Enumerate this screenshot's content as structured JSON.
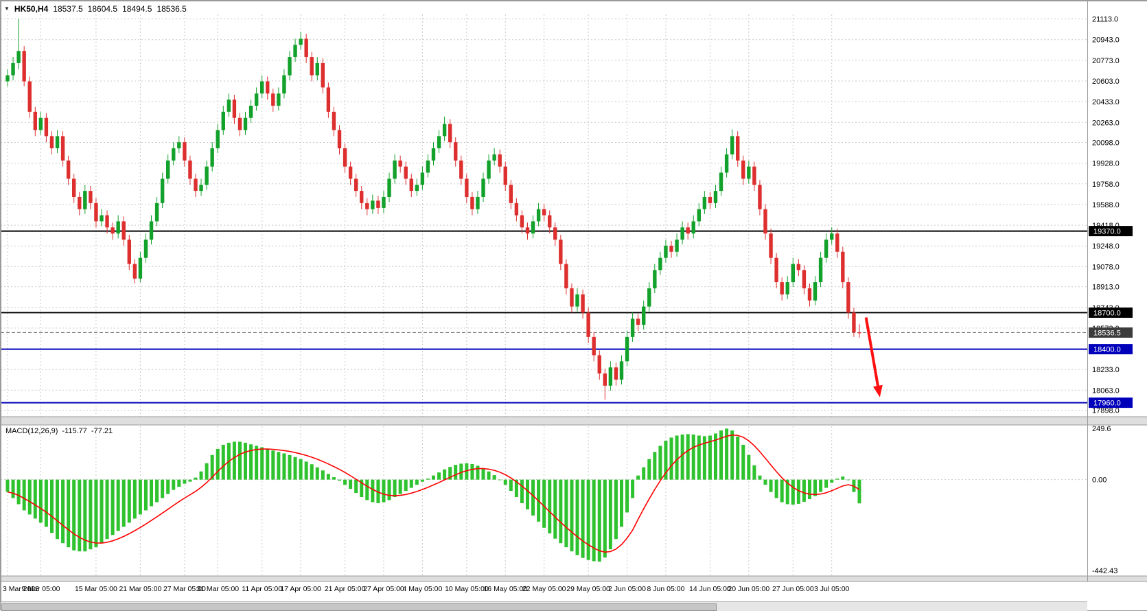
{
  "header": {
    "symbol_period": "HK50,H4",
    "open": "18537.5",
    "high": "18604.5",
    "low": "18494.5",
    "close": "18536.5"
  },
  "indicator_label": {
    "name": "MACD(12,26,9)",
    "value_macd": "-115.77",
    "value_signal": "-77.21"
  },
  "price_axis": {
    "ticks": [
      "21113.0",
      "20943.0",
      "20773.0",
      "20603.0",
      "20433.0",
      "20263.0",
      "20098.0",
      "19928.0",
      "19758.0",
      "19588.0",
      "19418.0",
      "19248.0",
      "19078.0",
      "18913.0",
      "18743.0",
      "18573.0",
      "18233.0",
      "18063.0",
      "17898.0"
    ],
    "badges": [
      {
        "text": "19370.0",
        "price": 19370.0,
        "bg": "#000000"
      },
      {
        "text": "18700.0",
        "price": 18700.0,
        "bg": "#000000"
      },
      {
        "text": "18536.5",
        "price": 18536.5,
        "bg": "#3c3c3c"
      },
      {
        "text": "18400.0",
        "price": 18400.0,
        "bg": "#0000BB"
      },
      {
        "text": "17960.0",
        "price": 17960.0,
        "bg": "#0000BB"
      }
    ]
  },
  "macd_axis": {
    "ticks": [
      {
        "text": "249.6",
        "value": 249.6
      },
      {
        "text": "0.00",
        "value": 0.0
      },
      {
        "text": "-442.43",
        "value": -442.43
      }
    ]
  },
  "time_axis": {
    "labels": [
      "3 Mar 2023",
      "9 Mar 05:00",
      "15 Mar 05:00",
      "21 Mar 05:00",
      "27 Mar 05:00",
      "31 Mar 05:00",
      "11 Apr 05:00",
      "17 Apr 05:00",
      "21 Apr 05:00",
      "27 Apr 05:00",
      "4 May 05:00",
      "10 May 05:00",
      "16 May 05:00",
      "22 May 05:00",
      "29 May 05:00",
      "2 Jun 05:00",
      "8 Jun 05:00",
      "14 Jun 05:00",
      "20 Jun 05:00",
      "27 Jun 05:00",
      "3 Jul 05:00"
    ],
    "bar_indices": [
      0,
      6,
      16,
      24,
      32,
      38,
      46,
      53,
      61,
      68,
      75,
      83,
      90,
      97,
      105,
      112,
      119,
      127,
      134,
      142,
      149
    ]
  },
  "price_lines": [
    {
      "price": 19370.0,
      "color": "#000000",
      "width": 2
    },
    {
      "price": 18700.0,
      "color": "#000000",
      "width": 2
    },
    {
      "price": 18400.0,
      "color": "#0000BB",
      "width": 2
    },
    {
      "price": 17960.0,
      "color": "#0000BB",
      "width": 2
    }
  ],
  "current_price_line": {
    "price": 18536.5,
    "color": "#666666"
  },
  "arrow_annotation": {
    "from_bar": 155.2,
    "from_price": 18660,
    "to_bar": 157.7,
    "to_price": 18005,
    "color": "#FF1010",
    "width": 4
  },
  "colors": {
    "background": "#FFFFFF",
    "grid": "#C9C9C9",
    "bull": "#12A12B",
    "bear": "#DE2F2F",
    "histogram": "#2EC22E",
    "signal": "#FF0000",
    "axis_text": "#000000",
    "separator": "#DEDEDE",
    "separator_edge": "#9A9A9A",
    "border": "#9A9A9A"
  },
  "chart_data": {
    "type": "candlestick",
    "symbol": "HK50",
    "timeframe": "H4",
    "price_range": [
      17845,
      21150
    ],
    "indicator_range": [
      -470,
      260
    ],
    "candles": [
      [
        20600,
        20700,
        20560,
        20650
      ],
      [
        20650,
        20800,
        20610,
        20750
      ],
      [
        20750,
        21113,
        20700,
        20850
      ],
      [
        20850,
        20890,
        20560,
        20600
      ],
      [
        20600,
        20640,
        20300,
        20350
      ],
      [
        20350,
        20390,
        20150,
        20200
      ],
      [
        20200,
        20350,
        20160,
        20300
      ],
      [
        20300,
        20340,
        20100,
        20150
      ],
      [
        20150,
        20190,
        20000,
        20050
      ],
      [
        20050,
        20200,
        20010,
        20150
      ],
      [
        20150,
        20190,
        19900,
        19950
      ],
      [
        19950,
        19990,
        19750,
        19800
      ],
      [
        19800,
        19840,
        19600,
        19650
      ],
      [
        19650,
        19690,
        19500,
        19550
      ],
      [
        19550,
        19750,
        19510,
        19700
      ],
      [
        19700,
        19740,
        19550,
        19600
      ],
      [
        19600,
        19640,
        19400,
        19450
      ],
      [
        19450,
        19550,
        19410,
        19500
      ],
      [
        19500,
        19540,
        19350,
        19400
      ],
      [
        19400,
        19440,
        19300,
        19350
      ],
      [
        19350,
        19500,
        19310,
        19450
      ],
      [
        19450,
        19490,
        19250,
        19300
      ],
      [
        19300,
        19340,
        19050,
        19100
      ],
      [
        19100,
        19140,
        18940,
        18980
      ],
      [
        18980,
        19200,
        18950,
        19150
      ],
      [
        19150,
        19350,
        19110,
        19300
      ],
      [
        19300,
        19500,
        19260,
        19450
      ],
      [
        19450,
        19650,
        19410,
        19600
      ],
      [
        19600,
        19850,
        19560,
        19800
      ],
      [
        19800,
        20000,
        19760,
        19950
      ],
      [
        19950,
        20100,
        19910,
        20050
      ],
      [
        20050,
        20150,
        20010,
        20100
      ],
      [
        20100,
        20140,
        19900,
        19950
      ],
      [
        19950,
        19990,
        19750,
        19800
      ],
      [
        19800,
        19840,
        19650,
        19700
      ],
      [
        19700,
        19800,
        19660,
        19750
      ],
      [
        19750,
        19950,
        19710,
        19900
      ],
      [
        19900,
        20100,
        19860,
        20050
      ],
      [
        20050,
        20250,
        20010,
        20200
      ],
      [
        20200,
        20400,
        20160,
        20350
      ],
      [
        20350,
        20500,
        20310,
        20450
      ],
      [
        20450,
        20490,
        20250,
        20300
      ],
      [
        20300,
        20340,
        20150,
        20200
      ],
      [
        20200,
        20350,
        20160,
        20300
      ],
      [
        20300,
        20450,
        20260,
        20400
      ],
      [
        20400,
        20550,
        20360,
        20500
      ],
      [
        20500,
        20650,
        20460,
        20600
      ],
      [
        20600,
        20640,
        20450,
        20500
      ],
      [
        20500,
        20540,
        20350,
        20400
      ],
      [
        20400,
        20550,
        20360,
        20500
      ],
      [
        20500,
        20700,
        20460,
        20650
      ],
      [
        20650,
        20850,
        20610,
        20800
      ],
      [
        20800,
        20950,
        20760,
        20900
      ],
      [
        20900,
        21005,
        20860,
        20950
      ],
      [
        20950,
        20990,
        20750,
        20800
      ],
      [
        20800,
        20840,
        20600,
        20650
      ],
      [
        20650,
        20800,
        20610,
        20750
      ],
      [
        20750,
        20790,
        20500,
        20550
      ],
      [
        20550,
        20590,
        20300,
        20350
      ],
      [
        20350,
        20390,
        20150,
        20200
      ],
      [
        20200,
        20240,
        20000,
        20050
      ],
      [
        20050,
        20090,
        19850,
        19900
      ],
      [
        19900,
        19940,
        19750,
        19800
      ],
      [
        19800,
        19840,
        19650,
        19700
      ],
      [
        19700,
        19740,
        19550,
        19600
      ],
      [
        19600,
        19640,
        19500,
        19550
      ],
      [
        19550,
        19670,
        19510,
        19620
      ],
      [
        19620,
        19660,
        19510,
        19560
      ],
      [
        19560,
        19700,
        19520,
        19650
      ],
      [
        19650,
        19850,
        19610,
        19800
      ],
      [
        19800,
        20000,
        19760,
        19950
      ],
      [
        19950,
        19990,
        19850,
        19900
      ],
      [
        19900,
        19940,
        19750,
        19800
      ],
      [
        19800,
        19840,
        19650,
        19700
      ],
      [
        19700,
        19800,
        19660,
        19750
      ],
      [
        19750,
        19900,
        19710,
        19850
      ],
      [
        19850,
        20000,
        19810,
        19950
      ],
      [
        19950,
        20100,
        19910,
        20050
      ],
      [
        20050,
        20200,
        20010,
        20150
      ],
      [
        20150,
        20310,
        20110,
        20250
      ],
      [
        20250,
        20290,
        20050,
        20100
      ],
      [
        20100,
        20140,
        19900,
        19950
      ],
      [
        19950,
        19990,
        19750,
        19800
      ],
      [
        19800,
        19840,
        19600,
        19650
      ],
      [
        19650,
        19690,
        19500,
        19550
      ],
      [
        19550,
        19700,
        19510,
        19650
      ],
      [
        19650,
        19850,
        19610,
        19800
      ],
      [
        19800,
        20000,
        19760,
        19950
      ],
      [
        19950,
        20050,
        19910,
        20000
      ],
      [
        20000,
        20040,
        19850,
        19900
      ],
      [
        19900,
        19940,
        19700,
        19750
      ],
      [
        19750,
        19790,
        19550,
        19600
      ],
      [
        19600,
        19640,
        19450,
        19500
      ],
      [
        19500,
        19540,
        19350,
        19400
      ],
      [
        19400,
        19440,
        19300,
        19350
      ],
      [
        19350,
        19500,
        19310,
        19450
      ],
      [
        19450,
        19600,
        19410,
        19550
      ],
      [
        19550,
        19590,
        19450,
        19500
      ],
      [
        19500,
        19540,
        19350,
        19400
      ],
      [
        19400,
        19440,
        19250,
        19300
      ],
      [
        19300,
        19340,
        19050,
        19100
      ],
      [
        19100,
        19140,
        18850,
        18900
      ],
      [
        18900,
        18940,
        18700,
        18750
      ],
      [
        18750,
        18900,
        18710,
        18850
      ],
      [
        18850,
        18890,
        18650,
        18700
      ],
      [
        18700,
        18740,
        18450,
        18500
      ],
      [
        18500,
        18540,
        18300,
        18350
      ],
      [
        18350,
        18390,
        18150,
        18200
      ],
      [
        18200,
        18240,
        17985,
        18100
      ],
      [
        18100,
        18300,
        18060,
        18250
      ],
      [
        18250,
        18290,
        18100,
        18150
      ],
      [
        18150,
        18350,
        18110,
        18300
      ],
      [
        18300,
        18550,
        18260,
        18500
      ],
      [
        18500,
        18700,
        18460,
        18650
      ],
      [
        18650,
        18690,
        18550,
        18600
      ],
      [
        18600,
        18800,
        18560,
        18750
      ],
      [
        18750,
        18950,
        18710,
        18900
      ],
      [
        18900,
        19100,
        18860,
        19050
      ],
      [
        19050,
        19200,
        19010,
        19150
      ],
      [
        19150,
        19300,
        19110,
        19250
      ],
      [
        19250,
        19290,
        19150,
        19200
      ],
      [
        19200,
        19350,
        19160,
        19300
      ],
      [
        19300,
        19450,
        19260,
        19400
      ],
      [
        19400,
        19440,
        19300,
        19350
      ],
      [
        19350,
        19500,
        19310,
        19450
      ],
      [
        19450,
        19600,
        19410,
        19550
      ],
      [
        19550,
        19700,
        19510,
        19650
      ],
      [
        19650,
        19690,
        19550,
        19600
      ],
      [
        19600,
        19750,
        19560,
        19700
      ],
      [
        19700,
        19900,
        19660,
        19850
      ],
      [
        19850,
        20050,
        19810,
        20000
      ],
      [
        20000,
        20205,
        19960,
        20150
      ],
      [
        20150,
        20190,
        19900,
        19950
      ],
      [
        19950,
        19990,
        19750,
        19800
      ],
      [
        19800,
        19950,
        19760,
        19900
      ],
      [
        19900,
        19940,
        19700,
        19750
      ],
      [
        19750,
        19790,
        19500,
        19550
      ],
      [
        19550,
        19590,
        19300,
        19350
      ],
      [
        19350,
        19390,
        19100,
        19150
      ],
      [
        19150,
        19190,
        18900,
        18950
      ],
      [
        18950,
        18990,
        18800,
        18850
      ],
      [
        18850,
        19000,
        18810,
        18950
      ],
      [
        18950,
        19150,
        18910,
        19100
      ],
      [
        19100,
        19140,
        19000,
        19050
      ],
      [
        19050,
        19090,
        18850,
        18900
      ],
      [
        18900,
        18940,
        18750,
        18800
      ],
      [
        18800,
        19000,
        18760,
        18950
      ],
      [
        18950,
        19200,
        18910,
        19150
      ],
      [
        19150,
        19350,
        19110,
        19300
      ],
      [
        19300,
        19400,
        19260,
        19350
      ],
      [
        19350,
        19390,
        19150,
        19200
      ],
      [
        19200,
        19240,
        18900,
        18950
      ],
      [
        18950,
        18990,
        18650,
        18700
      ],
      [
        18700,
        18740,
        18500,
        18537.5
      ],
      [
        18537.5,
        18604.5,
        18494.5,
        18536.5
      ]
    ],
    "indicator": {
      "name": "MACD",
      "params": [
        12,
        26,
        9
      ],
      "histogram": [
        -60,
        -90,
        -120,
        -150,
        -170,
        -190,
        -210,
        -230,
        -260,
        -290,
        -310,
        -330,
        -345,
        -350,
        -350,
        -340,
        -330,
        -310,
        -290,
        -270,
        -250,
        -230,
        -210,
        -190,
        -170,
        -150,
        -130,
        -110,
        -90,
        -70,
        -50,
        -35,
        -20,
        -10,
        10,
        40,
        80,
        120,
        150,
        170,
        180,
        185,
        185,
        180,
        172,
        165,
        158,
        150,
        142,
        135,
        128,
        120,
        110,
        100,
        88,
        75,
        60,
        45,
        28,
        12,
        -5,
        -25,
        -45,
        -65,
        -85,
        -100,
        -110,
        -115,
        -110,
        -100,
        -85,
        -70,
        -55,
        -40,
        -25,
        -10,
        5,
        20,
        35,
        50,
        62,
        72,
        78,
        80,
        76,
        68,
        55,
        40,
        22,
        0,
        -25,
        -55,
        -85,
        -115,
        -145,
        -175,
        -205,
        -235,
        -262,
        -288,
        -310,
        -330,
        -350,
        -368,
        -382,
        -392,
        -398,
        -400,
        -380,
        -340,
        -290,
        -230,
        -160,
        -90,
        20,
        60,
        100,
        135,
        165,
        190,
        205,
        215,
        220,
        222,
        220,
        215,
        212,
        215,
        225,
        240,
        249,
        240,
        210,
        170,
        120,
        70,
        20,
        -25,
        -60,
        -90,
        -110,
        -120,
        -122,
        -118,
        -108,
        -95,
        -80,
        -60,
        -40,
        -15,
        5,
        15,
        0,
        -60,
        -115.77
      ]
    }
  }
}
